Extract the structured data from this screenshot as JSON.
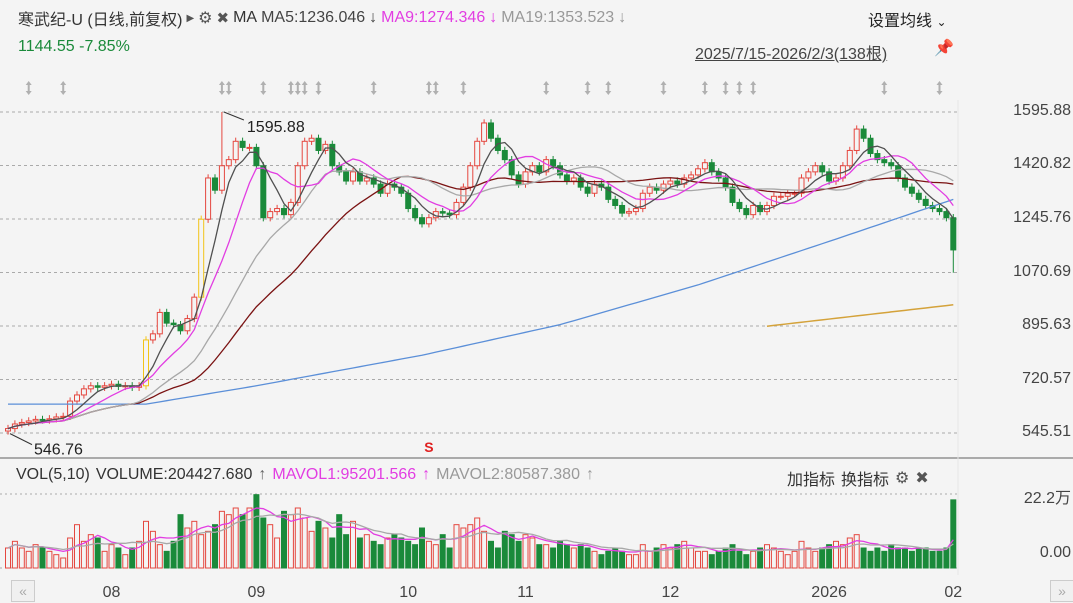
{
  "header": {
    "title": "寒武纪-U (日线,前复权)",
    "play_icon": "triangle-right",
    "ma_label": "MA",
    "ma5": "MA5:1236.046",
    "ma9": "MA9:1274.346",
    "ma19": "MA19:1353.523",
    "arrow_down": "↓",
    "settings_label": "设置均线",
    "chevron": "⌄",
    "price": "1144.55",
    "change": "-7.85%",
    "range": "2025/7/15-2026/2/3(138根)"
  },
  "colors": {
    "up": "#e5473f",
    "down": "#1a8a3a",
    "limit_up": "#f2c318",
    "ma5": "#505050",
    "ma9": "#e23de2",
    "ma19": "#a8a8a8",
    "ma30": "#7a1212",
    "ma_blue": "#5b8fd8",
    "ma_gold": "#d4a23a"
  },
  "chart_data": {
    "type": "candlestick",
    "y_ticks": [
      "1595.88",
      "1420.82",
      "1245.76",
      "1070.69",
      "895.63",
      "720.57",
      "545.51"
    ],
    "ylim": [
      545.51,
      1595.88
    ],
    "x_ticks": [
      {
        "i": 15,
        "label": "08"
      },
      {
        "i": 36,
        "label": "09"
      },
      {
        "i": 58,
        "label": "10"
      },
      {
        "i": 75,
        "label": "11"
      },
      {
        "i": 96,
        "label": "12"
      },
      {
        "i": 119,
        "label": "2026"
      },
      {
        "i": 137,
        "label": "02"
      }
    ],
    "annotations": [
      {
        "i": 31,
        "value": "1595.88"
      },
      {
        "i": 0,
        "value": "546.76"
      }
    ],
    "first_open": 552,
    "last_low": 1070,
    "limit_up_indices": [
      20,
      28
    ],
    "close": [
      560,
      575,
      580,
      585,
      590,
      588,
      592,
      598,
      600,
      650,
      670,
      690,
      700,
      695,
      700,
      705,
      698,
      700,
      695,
      700,
      850,
      870,
      940,
      905,
      900,
      880,
      920,
      990,
      1245,
      1380,
      1340,
      1420,
      1440,
      1500,
      1480,
      1480,
      1420,
      1250,
      1270,
      1280,
      1260,
      1300,
      1420,
      1500,
      1510,
      1470,
      1490,
      1420,
      1400,
      1370,
      1400,
      1370,
      1380,
      1360,
      1330,
      1360,
      1350,
      1330,
      1280,
      1250,
      1230,
      1250,
      1270,
      1265,
      1260,
      1300,
      1350,
      1420,
      1500,
      1560,
      1510,
      1470,
      1440,
      1390,
      1360,
      1400,
      1420,
      1400,
      1440,
      1420,
      1390,
      1370,
      1380,
      1350,
      1330,
      1360,
      1350,
      1310,
      1290,
      1265,
      1270,
      1280,
      1330,
      1350,
      1340,
      1360,
      1370,
      1360,
      1380,
      1390,
      1410,
      1430,
      1400,
      1380,
      1350,
      1300,
      1280,
      1260,
      1290,
      1270,
      1290,
      1320,
      1320,
      1330,
      1330,
      1380,
      1400,
      1420,
      1400,
      1370,
      1380,
      1420,
      1470,
      1540,
      1510,
      1460,
      1440,
      1430,
      1420,
      1380,
      1350,
      1330,
      1310,
      1290,
      1280,
      1270,
      1250,
      1144.55
    ],
    "ma_blue_anchors": [
      [
        0,
        640
      ],
      [
        20,
        640
      ],
      [
        36,
        700
      ],
      [
        60,
        800
      ],
      [
        80,
        900
      ],
      [
        100,
        1030
      ],
      [
        120,
        1180
      ],
      [
        137,
        1310
      ]
    ],
    "ma_gold_anchors": [
      [
        110,
        895
      ],
      [
        137,
        965
      ]
    ],
    "markers": [
      3,
      8,
      31,
      32,
      37,
      41,
      42,
      43,
      45,
      53,
      61,
      62,
      66,
      78,
      84,
      87,
      95,
      101,
      104,
      106,
      108,
      127,
      135
    ],
    "signal": {
      "i": 61,
      "label": "S"
    }
  },
  "volume": {
    "header": "VOL(5,10)",
    "volume": "VOLUME:204427.680",
    "mavol1": "MAVOL1:95201.566",
    "mavol2": "MAVOL2:80587.380",
    "arrow_up": "↑",
    "add_indicator": "加指标",
    "switch_indicator": "换指标",
    "max_label": "22.2万",
    "zero_label": "0.00",
    "max": 22.2,
    "unit": "万",
    "values": [
      6,
      8,
      6,
      5,
      7,
      6,
      5,
      4,
      3,
      9,
      13,
      8,
      10,
      9,
      5,
      7,
      6,
      4,
      6,
      8,
      14,
      11,
      7,
      5,
      8,
      16,
      12,
      14,
      10,
      11,
      13,
      17,
      16,
      18,
      16,
      18,
      22,
      15,
      13,
      9,
      17,
      16,
      18,
      15,
      11,
      14,
      12,
      9,
      16,
      10,
      14,
      9,
      10,
      8,
      7,
      9,
      10,
      9,
      8,
      7,
      12,
      8,
      7,
      10,
      6,
      13,
      12,
      13,
      15,
      11,
      8,
      6,
      11,
      10,
      8,
      10,
      9,
      7,
      7,
      6,
      8,
      7,
      6,
      7,
      6,
      5,
      4,
      5,
      6,
      5,
      4,
      4,
      7,
      5,
      6,
      7,
      6,
      7,
      8,
      6,
      5,
      5,
      4,
      5,
      6,
      7,
      5,
      4,
      5,
      6,
      7,
      6,
      5,
      4,
      5,
      8,
      6,
      5,
      6,
      7,
      8,
      7,
      9,
      10,
      6,
      5,
      6,
      5,
      7,
      6,
      6,
      5,
      6,
      6,
      5,
      5,
      6,
      20.44
    ]
  },
  "nav": {
    "prev": "«",
    "next": "»"
  }
}
